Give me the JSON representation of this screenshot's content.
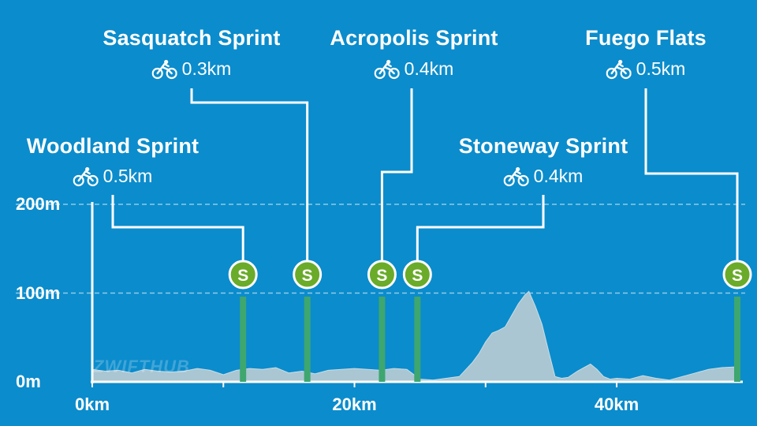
{
  "watermark": "ZWIFTHUB",
  "chart_data": {
    "type": "area",
    "title": "",
    "xlabel": "",
    "ylabel": "",
    "xlim": [
      0,
      49.5
    ],
    "ylim": [
      0,
      200
    ],
    "y_ticks": [
      {
        "value": 0,
        "label": "0m"
      },
      {
        "value": 100,
        "label": "100m"
      },
      {
        "value": 200,
        "label": "200m"
      }
    ],
    "x_ticks": [
      {
        "value": 0,
        "label": "0km"
      },
      {
        "value": 10,
        "label": ""
      },
      {
        "value": 20,
        "label": "20km"
      },
      {
        "value": 30,
        "label": ""
      },
      {
        "value": 40,
        "label": "40km"
      }
    ],
    "grid": {
      "horizontal_dashed_at": [
        100,
        200
      ]
    },
    "elevation_profile": {
      "x": [
        0,
        1,
        2,
        3,
        4,
        5,
        6,
        7,
        8,
        9,
        10,
        11,
        12,
        13,
        14,
        15,
        16,
        17,
        18,
        19,
        20,
        21,
        22,
        23,
        24,
        25,
        26,
        27,
        28,
        29,
        29.5,
        30,
        30.5,
        31,
        31.5,
        32,
        32.5,
        33,
        33.3,
        33.8,
        34.3,
        34.8,
        35.3,
        35.8,
        36.3,
        37,
        37.5,
        38,
        38.5,
        39,
        39.5,
        40,
        41,
        42,
        43,
        44,
        45,
        46,
        47,
        48,
        49.3
      ],
      "y": [
        14,
        12,
        13,
        10,
        14,
        12,
        11,
        12,
        15,
        13,
        8,
        13,
        15,
        14,
        16,
        10,
        12,
        9,
        13,
        14,
        15,
        14,
        13,
        15,
        14,
        3,
        2,
        4,
        6,
        22,
        32,
        45,
        55,
        58,
        62,
        75,
        88,
        98,
        102,
        85,
        65,
        35,
        6,
        4,
        5,
        12,
        16,
        20,
        14,
        6,
        3,
        4,
        3,
        7,
        4,
        2,
        6,
        10,
        14,
        16,
        17
      ]
    },
    "sprints": [
      {
        "name": "Woodland Sprint",
        "distance": "0.5km",
        "km": 11.5
      },
      {
        "name": "Sasquatch Sprint",
        "distance": "0.3km",
        "km": 16.4
      },
      {
        "name": "Acropolis Sprint",
        "distance": "0.4km",
        "km": 22.1
      },
      {
        "name": "Stoneway Sprint",
        "distance": "0.4km",
        "km": 24.8
      },
      {
        "name": "Fuego Flats",
        "distance": "0.5km",
        "km": 49.2
      }
    ],
    "sprint_marker_label": "S",
    "colors": {
      "background": "#0b8ccc",
      "profile_fill": "#a9c6d2",
      "sprint_bar": "#3ea66f",
      "sprint_marker": "#6aab2a",
      "leader": "#ffffff"
    }
  }
}
